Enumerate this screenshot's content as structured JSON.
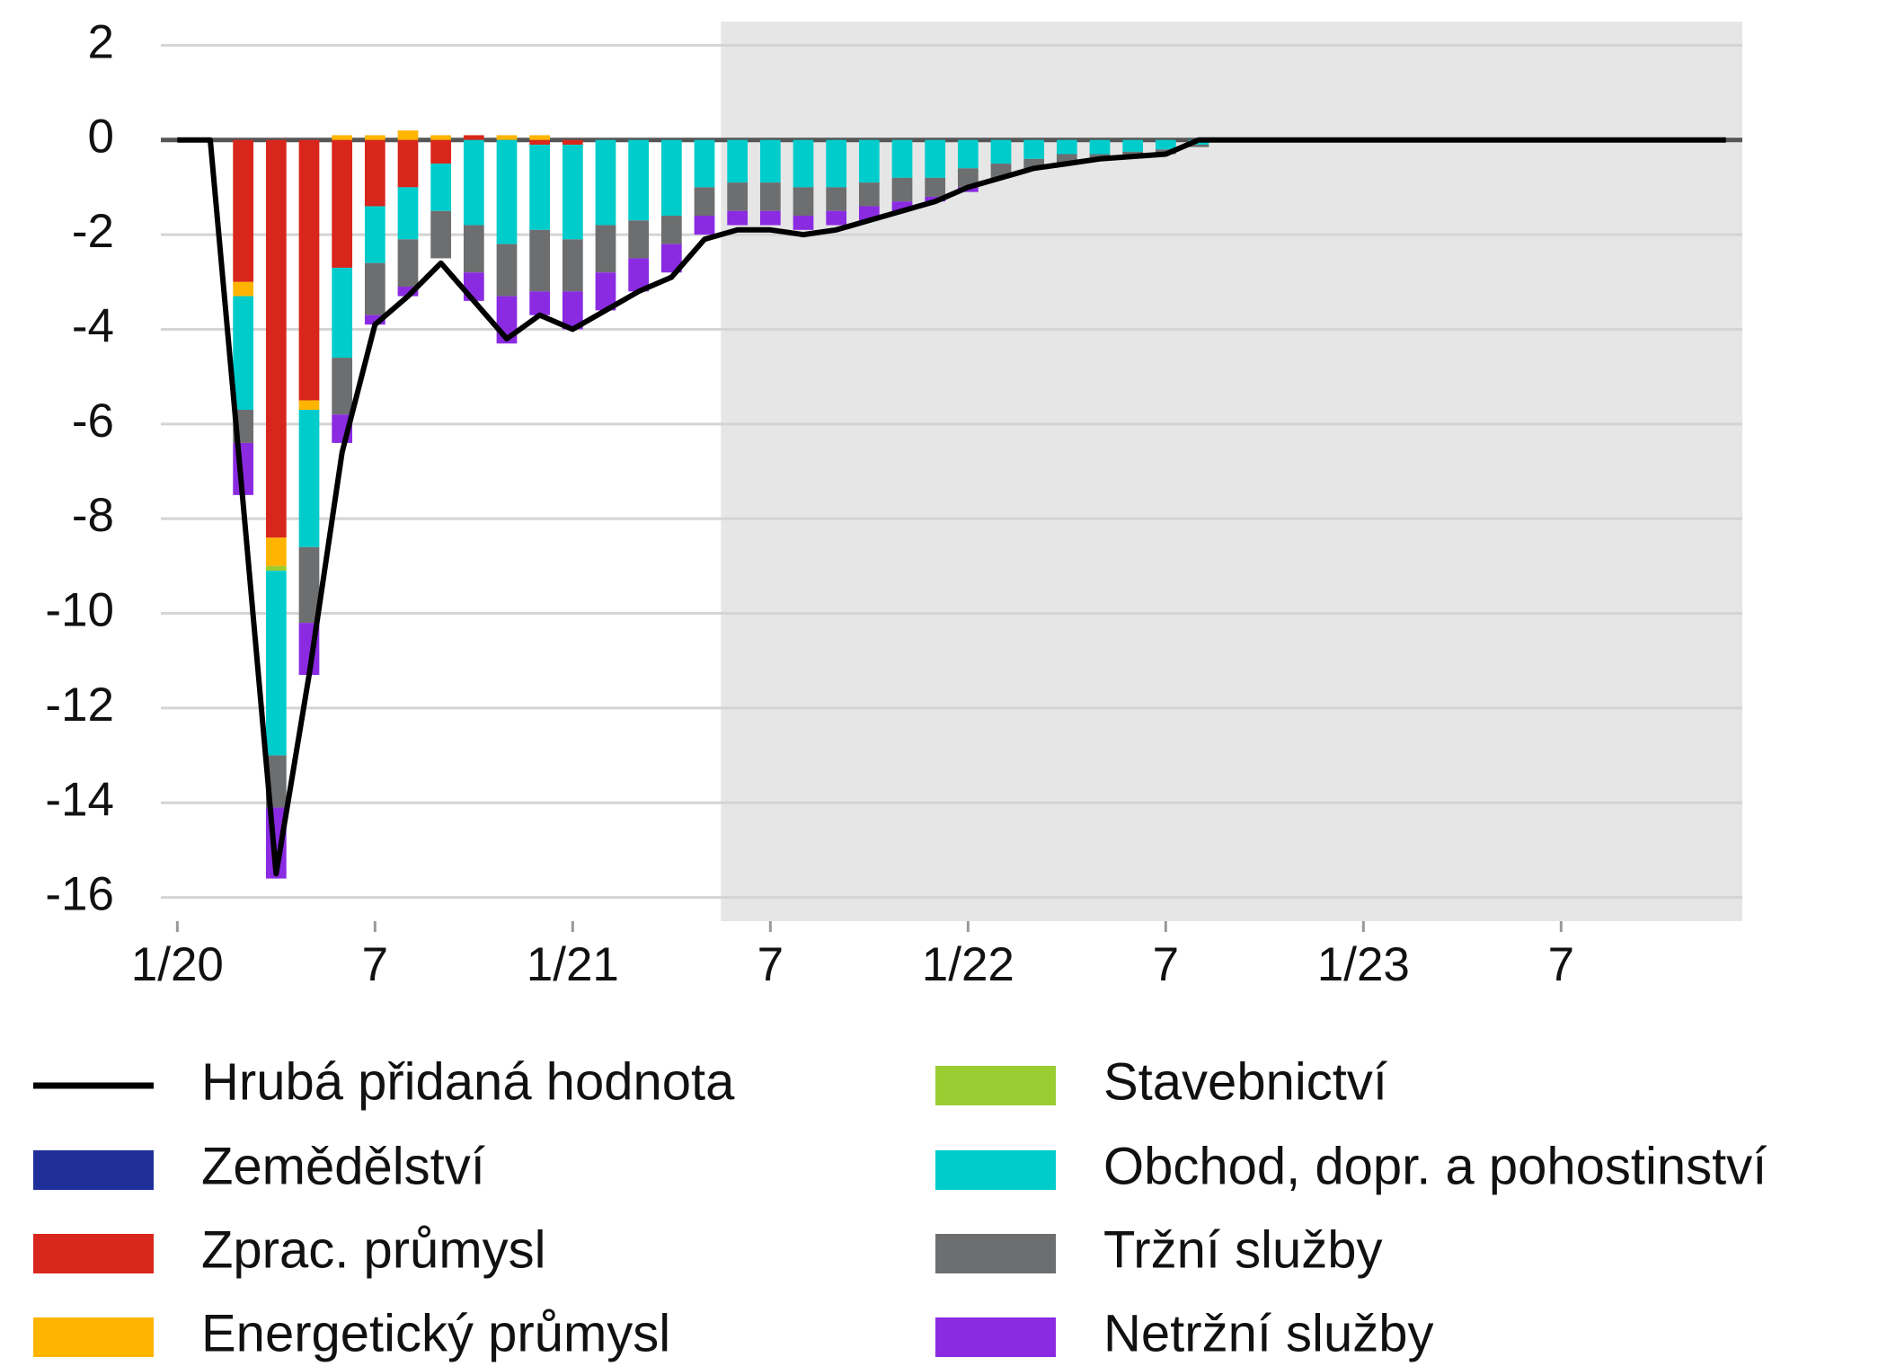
{
  "chart_data": {
    "type": "bar",
    "categories": [
      "1/20",
      null,
      null,
      null,
      null,
      null,
      "7",
      null,
      null,
      null,
      null,
      null,
      "1/21",
      null,
      null,
      null,
      null,
      null,
      "7",
      null,
      null,
      null,
      null,
      null,
      "1/22",
      null,
      null,
      null,
      null,
      null,
      "7",
      null,
      null,
      null,
      null,
      null,
      "1/23",
      null,
      null,
      null,
      null,
      null,
      "7",
      null,
      null,
      null,
      null,
      null
    ],
    "ylim": [
      -16.5,
      2.5
    ],
    "yticks": [
      2,
      0,
      -2,
      -4,
      -6,
      -8,
      -10,
      -12,
      -14,
      -16
    ],
    "grid": true,
    "shaded_from": 17,
    "line": {
      "name": "Hrubá přidaná hodnota",
      "color": "#000000",
      "values": [
        0,
        0,
        -7.7,
        -15.5,
        -11.3,
        -6.6,
        -3.9,
        -3.3,
        -2.6,
        -3.4,
        -4.2,
        -3.7,
        -4.0,
        -3.6,
        -3.2,
        -2.9,
        -2.1,
        -1.9,
        -1.9,
        -2.0,
        -1.9,
        -1.7,
        -1.5,
        -1.3,
        -1.0,
        -0.8,
        -0.6,
        -0.5,
        -0.4,
        -0.35,
        -0.3,
        0,
        0,
        0,
        0,
        0,
        0,
        0,
        0,
        0,
        0,
        0,
        0,
        0,
        0,
        0,
        0,
        0
      ]
    },
    "series": [
      {
        "name": "Zemědělství",
        "color": "#1f2f9a",
        "values": [
          0,
          0,
          0,
          0,
          0,
          0,
          0,
          0,
          0,
          0,
          0,
          0,
          0,
          0,
          0,
          0,
          0,
          0,
          0,
          0,
          0,
          0,
          0,
          0,
          0,
          0,
          0,
          0,
          0,
          0,
          0,
          0,
          0,
          0,
          0,
          0,
          0,
          0,
          0,
          0,
          0,
          0,
          0,
          0,
          0,
          0,
          0,
          0
        ]
      },
      {
        "name": "Zprac. průmysl",
        "color": "#d9261c",
        "values": [
          0,
          0,
          -3.0,
          -8.4,
          -5.5,
          -2.7,
          -1.4,
          -1.0,
          -0.5,
          0.1,
          0,
          -0.1,
          -0.1,
          0,
          0,
          0,
          0,
          0,
          0,
          0,
          0,
          0,
          0,
          0,
          0,
          0,
          0,
          0,
          0,
          0,
          0,
          0,
          0,
          0,
          0,
          0,
          0,
          0,
          0,
          0,
          0,
          0,
          0,
          0,
          0,
          0,
          0,
          0
        ]
      },
      {
        "name": "Energetický průmysl",
        "color": "#ffb400",
        "values": [
          0,
          0,
          -0.3,
          -0.6,
          -0.2,
          0.1,
          0.1,
          0.2,
          0.1,
          0,
          0.1,
          0.1,
          0,
          0,
          0,
          0,
          0,
          0,
          0,
          0,
          0,
          0,
          0,
          0,
          0,
          0,
          0,
          0,
          0,
          0,
          0,
          0,
          0,
          0,
          0,
          0,
          0,
          0,
          0,
          0,
          0,
          0,
          0,
          0,
          0,
          0,
          0,
          0
        ]
      },
      {
        "name": "Stavebnictví",
        "color": "#9acd32",
        "values": [
          0,
          0,
          0,
          -0.1,
          0,
          0,
          0,
          0,
          0,
          0,
          0,
          0,
          0,
          0,
          0,
          0,
          0,
          0,
          0,
          0,
          0,
          0,
          0,
          0,
          0,
          0,
          0,
          0,
          0,
          0,
          0,
          0,
          0,
          0,
          0,
          0,
          0,
          0,
          0,
          0,
          0,
          0,
          0,
          0,
          0,
          0,
          0,
          0
        ]
      },
      {
        "name": "Obchod, dopr. a pohostinství",
        "color": "#00cccc",
        "values": [
          0,
          0,
          -2.4,
          -3.9,
          -2.9,
          -1.9,
          -1.2,
          -1.1,
          -1.0,
          -1.8,
          -2.2,
          -1.8,
          -2.0,
          -1.8,
          -1.7,
          -1.6,
          -1.0,
          -0.9,
          -0.9,
          -1.0,
          -1.0,
          -0.9,
          -0.8,
          -0.8,
          -0.6,
          -0.5,
          -0.4,
          -0.3,
          -0.3,
          -0.25,
          -0.2,
          -0.1,
          0,
          0,
          0,
          0,
          0,
          0,
          0,
          0,
          0,
          0,
          0,
          0,
          0,
          0,
          0,
          0
        ]
      },
      {
        "name": "Tržní služby",
        "color": "#6d6e70",
        "values": [
          0,
          0,
          -0.7,
          -1.1,
          -1.6,
          -1.2,
          -1.1,
          -1.0,
          -1.0,
          -1.0,
          -1.1,
          -1.3,
          -1.1,
          -1.0,
          -0.8,
          -0.6,
          -0.6,
          -0.6,
          -0.6,
          -0.6,
          -0.5,
          -0.5,
          -0.5,
          -0.4,
          -0.4,
          -0.3,
          -0.2,
          -0.2,
          -0.1,
          -0.1,
          -0.1,
          -0.05,
          0,
          0,
          0,
          0,
          0,
          0,
          0,
          0,
          0,
          0,
          0,
          0,
          0,
          0,
          0,
          0
        ]
      },
      {
        "name": "Netržní služby",
        "color": "#8a2be2",
        "values": [
          0,
          0,
          -1.1,
          -1.5,
          -1.1,
          -0.6,
          -0.2,
          -0.2,
          0,
          -0.6,
          -1.0,
          -0.5,
          -0.8,
          -0.8,
          -0.7,
          -0.6,
          -0.4,
          -0.3,
          -0.3,
          -0.3,
          -0.3,
          -0.3,
          -0.2,
          -0.1,
          -0.1,
          0,
          0,
          0,
          0,
          0,
          0,
          0,
          0,
          0,
          0,
          0,
          0,
          0,
          0,
          0,
          0,
          0,
          0,
          0,
          0,
          0,
          0,
          0
        ]
      }
    ]
  }
}
